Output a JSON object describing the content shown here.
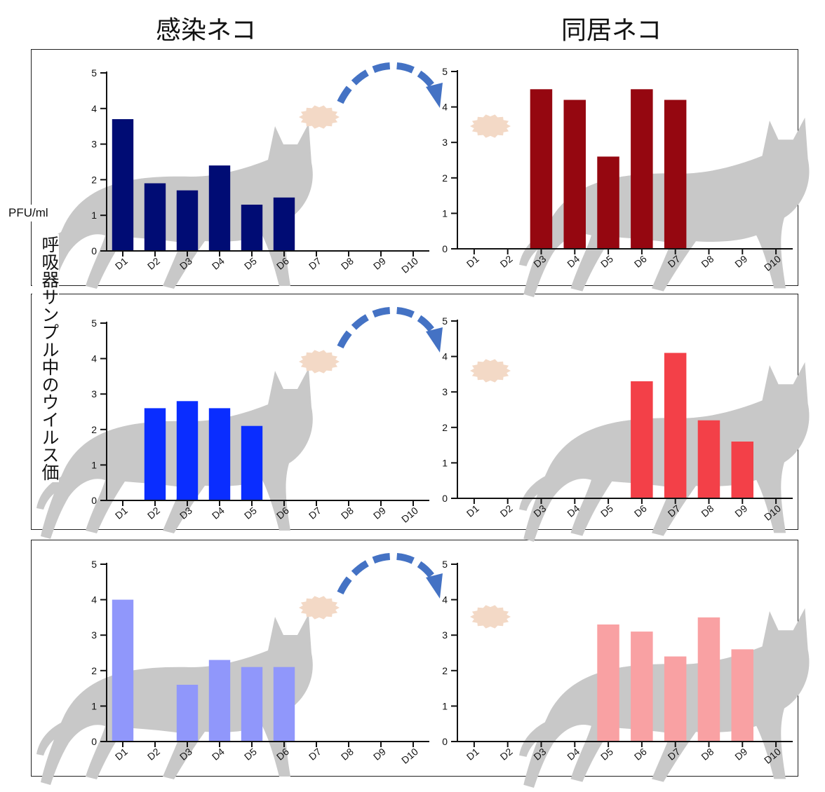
{
  "labels": {
    "infected_cat": "感染ネコ",
    "cohabiting_cat": "同居ネコ",
    "unit": "PFU/ml",
    "y_axis": "呼吸器サンプル中のウイルス価"
  },
  "colors": {
    "row1_left": "#000c74",
    "row1_right": "#950710",
    "row2_left": "#0a2dff",
    "row2_right": "#f34048",
    "row3_left": "#9097fb",
    "row3_right": "#f9a1a3",
    "cat_silhouette": "#c8c8c8",
    "virus": "#f3d9c6",
    "arrow": "#4472c4"
  },
  "chart_data": [
    {
      "type": "bar",
      "title": "",
      "categories": [
        "D1",
        "D2",
        "D3",
        "D4",
        "D5",
        "D6",
        "D7",
        "D8",
        "D9",
        "D10"
      ],
      "values": [
        3.7,
        1.9,
        1.7,
        2.4,
        1.3,
        1.5,
        null,
        null,
        null,
        null
      ],
      "ylim": [
        0,
        5
      ],
      "yticks": [
        0,
        1,
        2,
        3,
        4,
        5
      ],
      "color_key": "row1_left"
    },
    {
      "type": "bar",
      "title": "",
      "categories": [
        "D1",
        "D2",
        "D3",
        "D4",
        "D5",
        "D6",
        "D7",
        "D8",
        "D9",
        "D10"
      ],
      "values": [
        null,
        null,
        4.5,
        4.2,
        2.6,
        4.5,
        4.2,
        null,
        null,
        null
      ],
      "ylim": [
        0,
        5
      ],
      "yticks": [
        0,
        1,
        2,
        3,
        4,
        5
      ],
      "color_key": "row1_right"
    },
    {
      "type": "bar",
      "title": "",
      "categories": [
        "D1",
        "D2",
        "D3",
        "D4",
        "D5",
        "D6",
        "D7",
        "D8",
        "D9",
        "D10"
      ],
      "values": [
        null,
        2.6,
        2.8,
        2.6,
        2.1,
        null,
        null,
        null,
        null,
        null
      ],
      "ylim": [
        0,
        5
      ],
      "yticks": [
        0,
        1,
        2,
        3,
        4,
        5
      ],
      "color_key": "row2_left"
    },
    {
      "type": "bar",
      "title": "",
      "categories": [
        "D1",
        "D2",
        "D3",
        "D4",
        "D5",
        "D6",
        "D7",
        "D8",
        "D9",
        "D10"
      ],
      "values": [
        null,
        null,
        null,
        null,
        null,
        3.3,
        4.1,
        2.2,
        1.6,
        null
      ],
      "ylim": [
        0,
        5
      ],
      "yticks": [
        0,
        1,
        2,
        3,
        4,
        5
      ],
      "color_key": "row2_right"
    },
    {
      "type": "bar",
      "title": "",
      "categories": [
        "D1",
        "D2",
        "D3",
        "D4",
        "D5",
        "D6",
        "D7",
        "D8",
        "D9",
        "D10"
      ],
      "values": [
        4.0,
        null,
        1.6,
        2.3,
        2.1,
        2.1,
        null,
        null,
        null,
        null
      ],
      "ylim": [
        0,
        5
      ],
      "yticks": [
        0,
        1,
        2,
        3,
        4,
        5
      ],
      "color_key": "row3_left"
    },
    {
      "type": "bar",
      "title": "",
      "categories": [
        "D1",
        "D2",
        "D3",
        "D4",
        "D5",
        "D6",
        "D7",
        "D8",
        "D9",
        "D10"
      ],
      "values": [
        null,
        null,
        null,
        null,
        3.3,
        3.1,
        2.4,
        3.5,
        2.6,
        null
      ],
      "ylim": [
        0,
        5
      ],
      "yticks": [
        0,
        1,
        2,
        3,
        4,
        5
      ],
      "color_key": "row3_right"
    }
  ]
}
